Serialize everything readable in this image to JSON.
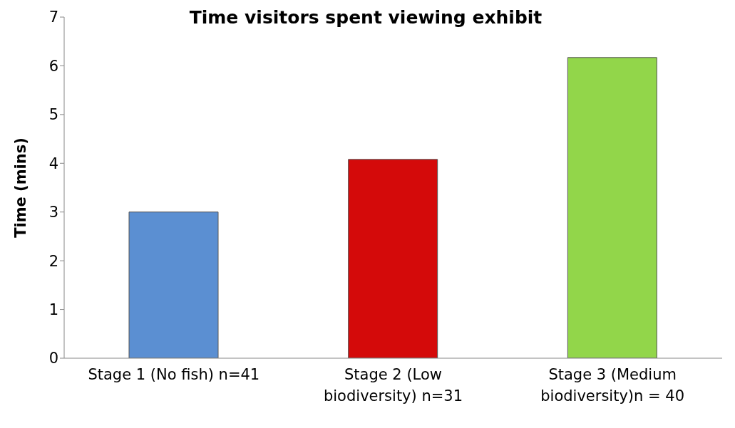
{
  "chart_data": {
    "type": "bar",
    "title": "Time visitors spent viewing exhibit",
    "ylabel": "Time (mins)",
    "categories": [
      "Stage 1 (No fish) n=41",
      "Stage 2 (Low biodiversity) n=31",
      "Stage 3 (Medium biodiversity)n = 40"
    ],
    "values": [
      3.0,
      4.08,
      6.17
    ],
    "colors": [
      "#5b8fd2",
      "#d40a0a",
      "#92d64a"
    ],
    "ylim": [
      0,
      7
    ],
    "yticks": [
      0,
      1,
      2,
      3,
      4,
      5,
      6,
      7
    ],
    "grid": false,
    "legend": false
  }
}
